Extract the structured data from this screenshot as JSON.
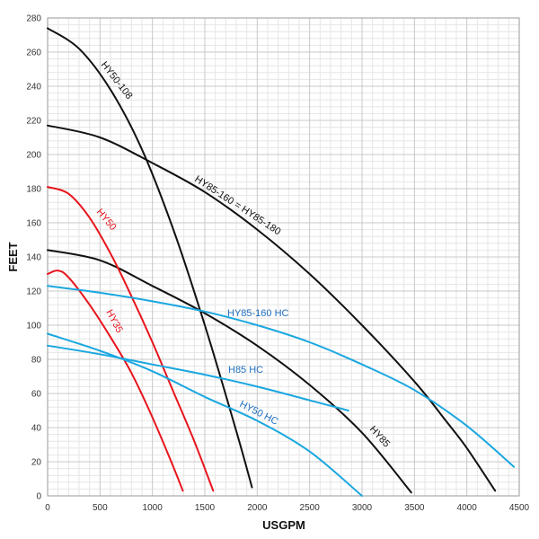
{
  "chart_data": {
    "type": "line",
    "title": "",
    "xlabel": "USGPM",
    "ylabel": "FEET",
    "xlim": [
      0,
      4500
    ],
    "ylim": [
      0,
      280
    ],
    "x_ticks": [
      "0",
      "500",
      "1000",
      "1500",
      "2000",
      "2500",
      "3000",
      "3500",
      "4000",
      "4500"
    ],
    "y_ticks": [
      "0",
      "20",
      "40",
      "60",
      "80",
      "100",
      "120",
      "140",
      "160",
      "180",
      "200",
      "220",
      "240",
      "260",
      "280"
    ],
    "grid": true,
    "minor_grid": true,
    "colors": {
      "black": "#111111",
      "red": "#e8141c",
      "blue": "#1aa7e0",
      "grid": "#c8c8c8",
      "minor_grid": "#e6e6e6"
    },
    "series": [
      {
        "name": "HY50-108",
        "color": "#111111",
        "x": [
          0,
          300,
          600,
          900,
          1200,
          1500,
          1800,
          1950
        ],
        "y": [
          274,
          262,
          238,
          203,
          156,
          100,
          38,
          5
        ]
      },
      {
        "name": "HY85-160 = HY85-180",
        "color": "#111111",
        "x": [
          0,
          500,
          1000,
          1500,
          2000,
          2500,
          3000,
          3500,
          3800,
          4000,
          4270
        ],
        "y": [
          217,
          210,
          195,
          178,
          156,
          130,
          100,
          67,
          44,
          28,
          3
        ]
      },
      {
        "name": "HY85",
        "color": "#111111",
        "x": [
          0,
          500,
          1000,
          1500,
          2000,
          2500,
          3000,
          3470
        ],
        "y": [
          144,
          138,
          123,
          107,
          88,
          65,
          37,
          2
        ]
      },
      {
        "name": "HY50",
        "color": "#e8141c",
        "x": [
          0,
          200,
          400,
          600,
          800,
          1000,
          1200,
          1400,
          1580
        ],
        "y": [
          181,
          177,
          163,
          142,
          117,
          90,
          61,
          32,
          3
        ]
      },
      {
        "name": "HY35",
        "color": "#e8141c",
        "x": [
          0,
          100,
          200,
          400,
          600,
          800,
          1000,
          1200,
          1290
        ],
        "y": [
          130,
          132,
          128,
          112,
          93,
          72,
          46,
          17,
          3
        ]
      },
      {
        "name": "HY85-160 HC",
        "color": "#1aa7e0",
        "x": [
          0,
          500,
          1000,
          1500,
          2000,
          2500,
          3000,
          3500,
          4000,
          4450
        ],
        "y": [
          123,
          119,
          114,
          108,
          100,
          90,
          77,
          62,
          41,
          17
        ]
      },
      {
        "name": "H85 HC",
        "color": "#1aa7e0",
        "x": [
          0,
          500,
          1000,
          1500,
          2000,
          2500,
          2870
        ],
        "y": [
          88,
          83,
          77,
          71,
          64,
          56,
          50
        ]
      },
      {
        "name": "HY50 HC",
        "color": "#1aa7e0",
        "x": [
          0,
          500,
          1000,
          1500,
          2000,
          2500,
          3000
        ],
        "y": [
          95,
          85,
          73,
          58,
          44,
          26,
          0
        ]
      }
    ],
    "curve_labels": [
      {
        "text": "HY50-108",
        "color": "#111111"
      },
      {
        "text": "HY85-160 = HY85-180",
        "color": "#111111"
      },
      {
        "text": "HY85",
        "color": "#111111"
      },
      {
        "text": "HY50",
        "color": "#e8141c"
      },
      {
        "text": "HY35",
        "color": "#e8141c"
      },
      {
        "text": "HY85-160 HC",
        "color": "#1f6fbf"
      },
      {
        "text": "H85 HC",
        "color": "#1f6fbf"
      },
      {
        "text": "HY50 HC",
        "color": "#1f6fbf"
      }
    ]
  }
}
